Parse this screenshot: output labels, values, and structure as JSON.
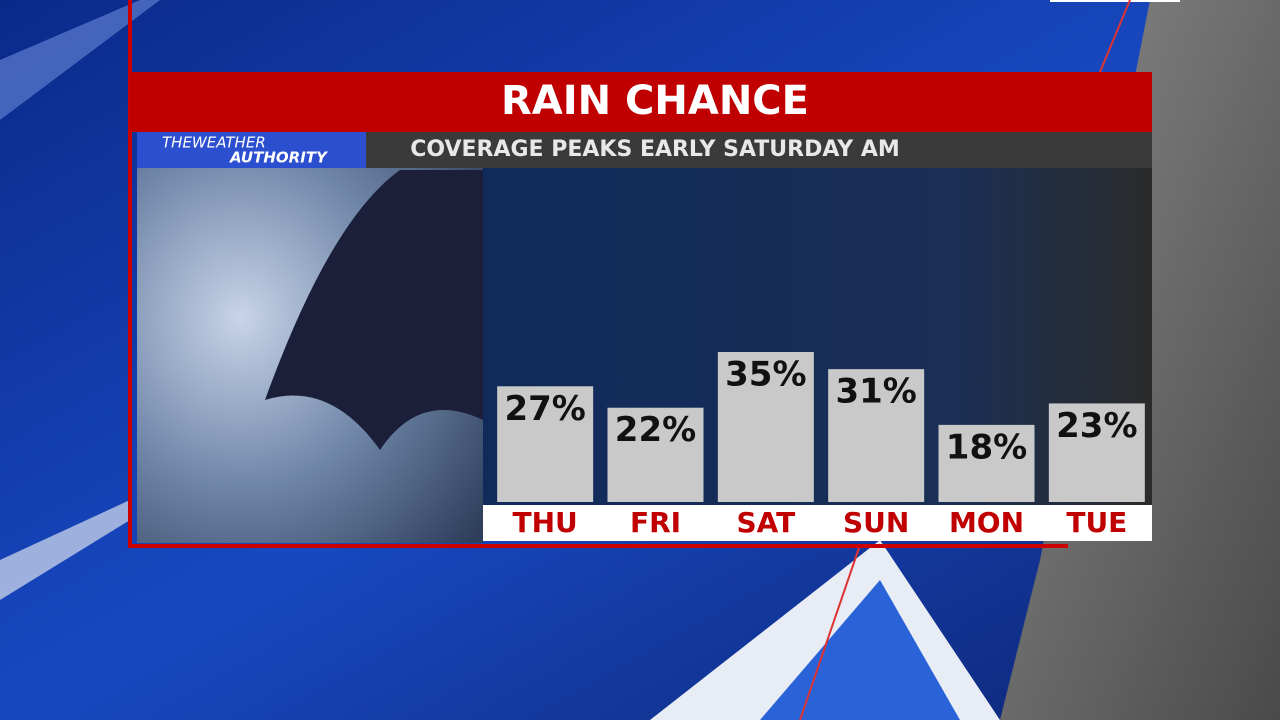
{
  "chart_data": {
    "type": "bar",
    "title": "RAIN CHANCE",
    "subtitle": "COVERAGE PEAKS EARLY SATURDAY AM",
    "logo": [
      "THEWEATHER",
      "AUTHORITY"
    ],
    "categories": [
      "THU",
      "FRI",
      "SAT",
      "SUN",
      "MON",
      "TUE"
    ],
    "values": [
      27,
      22,
      35,
      31,
      18,
      23
    ],
    "value_labels": [
      "27%",
      "22%",
      "35%",
      "31%",
      "18%",
      "23%"
    ],
    "color": "#c9c9c9"
  }
}
